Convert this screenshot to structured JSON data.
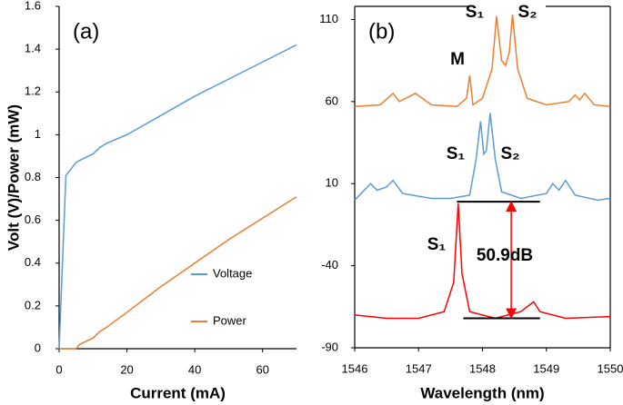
{
  "chart_data": [
    {
      "type": "line",
      "panel": "(a)",
      "x_label": "Current (mA)",
      "y_label": "Volt (V)/Power (mW)",
      "x": [
        0,
        2,
        5,
        6,
        10,
        12,
        14,
        20,
        30,
        40,
        50,
        60,
        70
      ],
      "series": [
        {
          "name": "Voltage",
          "color": "#5b9bd5",
          "values": [
            0,
            0.81,
            0.87,
            0.88,
            0.91,
            0.94,
            0.96,
            1.0,
            1.09,
            1.18,
            1.26,
            1.34,
            1.42
          ]
        },
        {
          "name": "Power",
          "color": "#ed7d31",
          "values": [
            0,
            0,
            0,
            0.02,
            0.05,
            0.08,
            0.1,
            0.17,
            0.29,
            0.4,
            0.51,
            0.61,
            0.71
          ]
        }
      ],
      "xlim": [
        0,
        70
      ],
      "xticks": [
        0,
        20,
        40,
        60
      ],
      "ylim": [
        0,
        1.6
      ],
      "yticks": [
        0,
        0.2,
        0.4,
        0.6,
        0.8,
        1,
        1.2,
        1.4,
        1.6
      ],
      "legend": "right"
    },
    {
      "type": "line",
      "panel": "(b)",
      "x_label": "Wavelength (nm)",
      "series": [
        {
          "color": "#ed7d31",
          "x": [
            1546,
            1546.4,
            1546.6,
            1546.7,
            1546.85,
            1546.95,
            1547.2,
            1547.6,
            1547.75,
            1547.8,
            1547.85,
            1548.0,
            1548.15,
            1548.22,
            1548.3,
            1548.36,
            1548.42,
            1548.47,
            1548.55,
            1548.7,
            1549.0,
            1549.35,
            1549.45,
            1549.52,
            1549.6,
            1549.75,
            1550
          ],
          "values": [
            57,
            58,
            65,
            60,
            63,
            65,
            58,
            57,
            62,
            76,
            58,
            62,
            80,
            112,
            85,
            82,
            90,
            113,
            80,
            62,
            58,
            60,
            64,
            61,
            65,
            58,
            57
          ]
        },
        {
          "color": "#5b9bd5",
          "x": [
            1546,
            1546.15,
            1546.25,
            1546.35,
            1546.5,
            1546.6,
            1546.75,
            1547.2,
            1547.5,
            1547.8,
            1547.9,
            1547.97,
            1548.02,
            1548.06,
            1548.12,
            1548.2,
            1548.3,
            1548.6,
            1549.0,
            1549.1,
            1549.2,
            1549.3,
            1549.45,
            1549.8,
            1550
          ],
          "values": [
            0,
            6,
            10,
            6,
            8,
            12,
            4,
            1,
            1,
            3,
            25,
            48,
            28,
            30,
            53,
            25,
            5,
            1,
            4,
            10,
            6,
            12,
            3,
            0,
            1
          ]
        },
        {
          "color": "#ff0000",
          "x": [
            1546,
            1546.5,
            1547.0,
            1547.4,
            1547.55,
            1547.62,
            1547.68,
            1547.8,
            1548.2,
            1548.6,
            1548.8,
            1548.9,
            1549.3,
            1550
          ],
          "values": [
            -70,
            -72,
            -72,
            -68,
            -50,
            -2,
            -45,
            -68,
            -72,
            -68,
            -62,
            -68,
            -72,
            -71
          ]
        }
      ],
      "xlim": [
        1546,
        1550
      ],
      "xticks": [
        1546,
        1547,
        1548,
        1549,
        1550
      ],
      "ylim": [
        -90,
        118
      ],
      "yticks": [
        -90,
        -40,
        10,
        60,
        110
      ],
      "annotations": [
        "S₁",
        "S₂",
        "M",
        "S₁",
        "S₂",
        "S₁",
        "50.9dB"
      ]
    }
  ]
}
